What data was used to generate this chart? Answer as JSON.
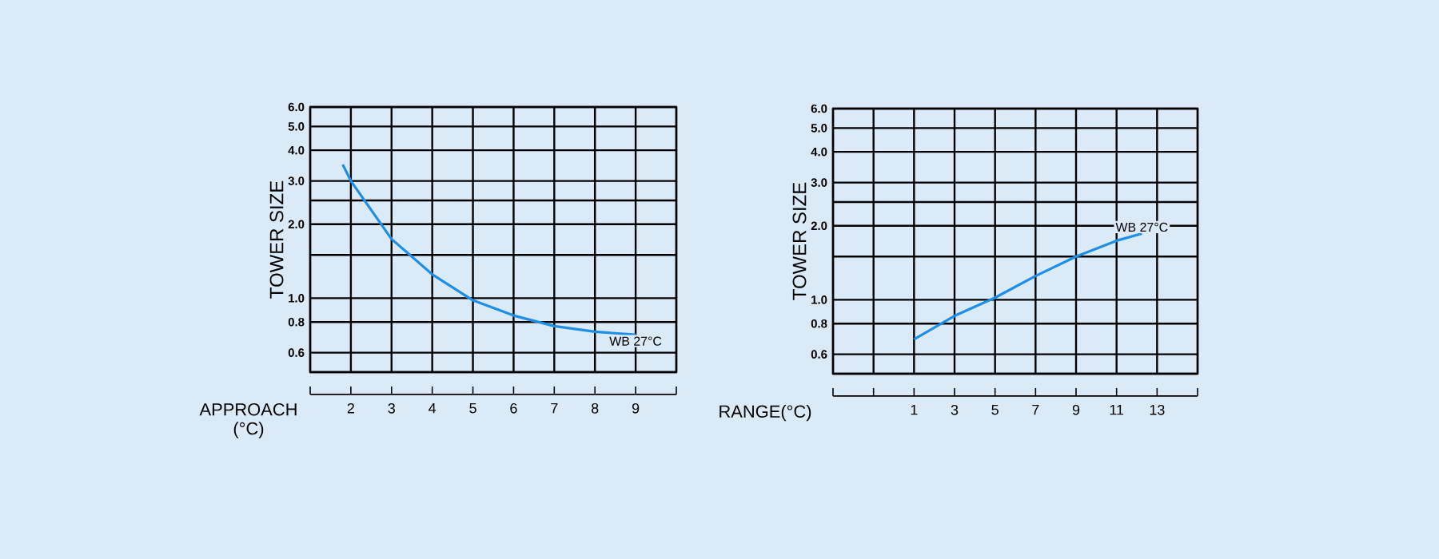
{
  "chart_data": [
    {
      "type": "line",
      "xlabel": "APPROACH (°C)",
      "ylabel": "TOWER SIZE",
      "log": "y",
      "grid": true,
      "xlim": [
        1,
        10
      ],
      "ylim": [
        0.5,
        6
      ],
      "xticks": [
        {
          "value": 1,
          "label": null
        },
        2,
        3,
        4,
        5,
        6,
        7,
        8,
        9,
        {
          "value": 10,
          "label": null
        }
      ],
      "yticks": [
        {
          "value": 0.5,
          "label": null
        },
        {
          "value": 0.6,
          "label": "0.6"
        },
        {
          "value": 0.8,
          "label": "0.8"
        },
        {
          "value": 1,
          "label": "1.0"
        },
        {
          "value": 1.5,
          "label": null
        },
        {
          "value": 2,
          "label": "2.0"
        },
        {
          "value": 2.5,
          "label": null
        },
        {
          "value": 3,
          "label": "3.0"
        },
        {
          "value": 4,
          "label": "4.0"
        },
        {
          "value": 5,
          "label": "5.0"
        },
        {
          "value": 6,
          "label": "6.0"
        }
      ],
      "series": [
        {
          "color": "#1e8fe6",
          "x": [
            1.8,
            2,
            3,
            4,
            5,
            6,
            7,
            8,
            9
          ],
          "values": [
            3.5,
            3.0,
            1.74,
            1.25,
            0.98,
            0.85,
            0.77,
            0.73,
            0.71
          ]
        }
      ],
      "annotations": [
        {
          "text": "WB 27°C",
          "x": 9,
          "y": 0.71
        }
      ]
    },
    {
      "type": "line",
      "xlabel": "RANGE(°C)",
      "ylabel": "TOWER SIZE",
      "log": "y",
      "grid": true,
      "xlim": [
        -3,
        15
      ],
      "ylim": [
        0.5,
        6
      ],
      "xticks": [
        {
          "value": -3,
          "label": null
        },
        {
          "value": -1,
          "label": null
        },
        1,
        3,
        5,
        7,
        9,
        11,
        13,
        {
          "value": 15,
          "label": null
        }
      ],
      "yticks": [
        {
          "value": 0.5,
          "label": null
        },
        {
          "value": 0.6,
          "label": "0.6"
        },
        {
          "value": 0.8,
          "label": "0.8"
        },
        {
          "value": 1,
          "label": "1.0"
        },
        {
          "value": 1.5,
          "label": null
        },
        {
          "value": 2,
          "label": "2.0"
        },
        {
          "value": 2.5,
          "label": null
        },
        {
          "value": 3,
          "label": "3.0"
        },
        {
          "value": 4,
          "label": "4.0"
        },
        {
          "value": 5,
          "label": "5.0"
        },
        {
          "value": 6,
          "label": "6.0"
        }
      ],
      "series": [
        {
          "color": "#1e8fe6",
          "x": [
            1,
            3,
            5,
            7,
            9,
            11,
            12.25
          ],
          "values": [
            0.69,
            0.86,
            1.02,
            1.25,
            1.5,
            1.74,
            1.86
          ]
        }
      ],
      "annotations": [
        {
          "text": "WB 27°C",
          "x": 12.25,
          "y": 1.86
        }
      ]
    }
  ]
}
